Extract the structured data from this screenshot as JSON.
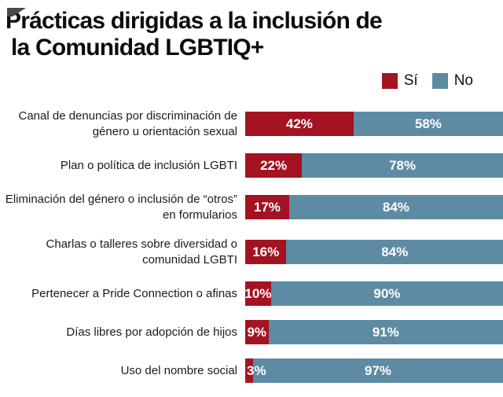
{
  "title": {
    "line1": "Prácticas dirigidas a la inclusión de",
    "line2": "la Comunidad LGBTIQ+"
  },
  "legend": {
    "items": [
      {
        "label": "Sí",
        "color": "#a31321"
      },
      {
        "label": "No",
        "color": "#5d8ba3"
      }
    ]
  },
  "chart_data": {
    "type": "bar",
    "orientation": "horizontal",
    "stacked": true,
    "title": "Prácticas dirigidas a la inclusión de la Comunidad LGBTIQ+",
    "unit": "%",
    "xlim": [
      0,
      100
    ],
    "legend_position": "top-right",
    "value_labels": "inside",
    "categories": [
      "Canal de denuncias por discriminación de género u orientación sexual",
      "Plan o política de inclusión LGBTI",
      "Eliminación del género o inclusión de “otros” en formularios",
      "Charlas o talleres sobre diversidad o comunidad LGBTI",
      "Pertenecer a Pride Connection o afinas",
      "Días libres por adopción de hijos",
      "Uso del nombre social"
    ],
    "series": [
      {
        "name": "Sí",
        "color": "#a31321",
        "values": [
          42,
          22,
          17,
          16,
          10,
          9,
          3
        ],
        "labels": [
          "42%",
          "22%",
          "17%",
          "16%",
          "10%",
          "9%",
          "3%"
        ]
      },
      {
        "name": "No",
        "color": "#5d8ba3",
        "values": [
          58,
          78,
          84,
          84,
          90,
          91,
          97
        ],
        "labels": [
          "58%",
          "78%",
          "84%",
          "84%",
          "90%",
          "91%",
          "97%"
        ]
      }
    ]
  }
}
